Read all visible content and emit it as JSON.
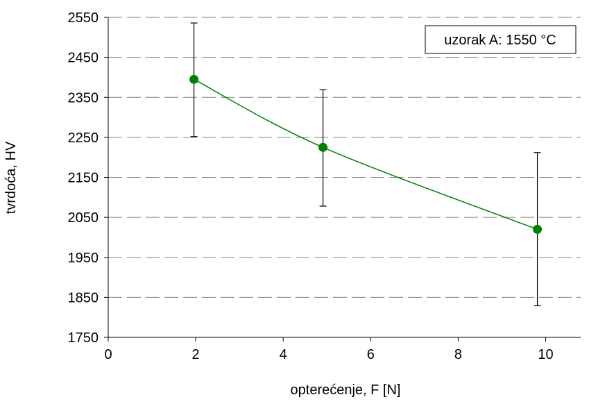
{
  "chart_data": {
    "type": "scatter",
    "title": "",
    "xlabel": "opterećenje, F [N]",
    "ylabel": "tvrdoća, HV",
    "xlim": [
      0,
      10.8
    ],
    "ylim": [
      1750,
      2550
    ],
    "x_ticks": [
      0,
      2,
      4,
      6,
      8,
      10
    ],
    "y_ticks": [
      1750,
      1850,
      1950,
      2050,
      2150,
      2250,
      2350,
      2450,
      2550
    ],
    "grid": "horizontal dashed",
    "legend": "top-right",
    "legend_text": "uzorak A: 1550 °C",
    "series": [
      {
        "name": "uzorak A: 1550 °C",
        "color": "#008000",
        "line": "smooth",
        "x": [
          1.96,
          4.91,
          9.81
        ],
        "y": [
          2395,
          2225,
          2020
        ],
        "error_low": [
          2252,
          2078,
          1829
        ],
        "error_high": [
          2536,
          2369,
          2212
        ]
      }
    ]
  }
}
